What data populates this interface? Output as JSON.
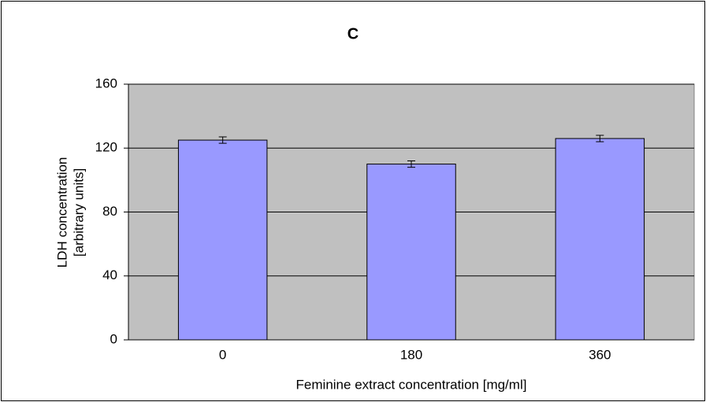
{
  "chart_data": {
    "type": "bar",
    "title": "C",
    "x_label": "Feminine extract concentration [mg/ml]",
    "y_label": [
      "LDH concentration",
      "[arbitrary units]"
    ],
    "categories": [
      "0",
      "180",
      "360"
    ],
    "values": [
      125,
      110,
      126
    ],
    "errors": [
      2,
      2,
      2
    ],
    "color": "#9999ff",
    "plot_background": "#c0c0c0",
    "ylim": [
      0,
      160
    ],
    "yticks": [
      0,
      40,
      80,
      120,
      160
    ],
    "grid": true
  }
}
